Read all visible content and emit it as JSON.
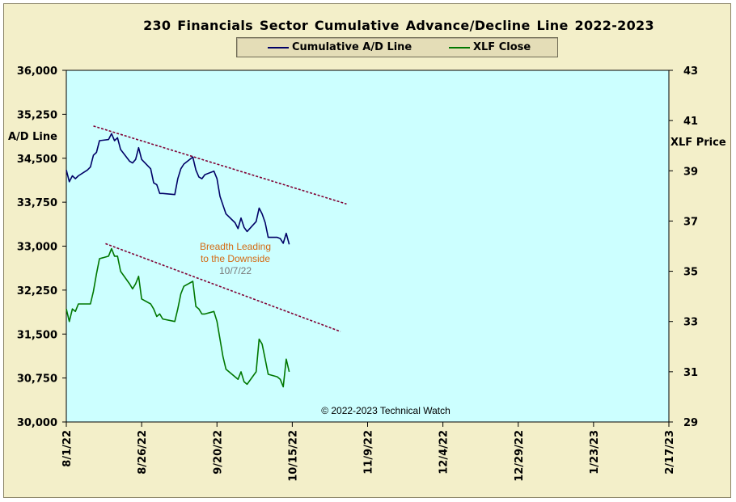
{
  "chart_data": {
    "type": "line",
    "title": "230 Financials  Sector Cumulative  Advance/Decline  Line  2022-2023",
    "legend": {
      "placement": "top-center",
      "entries": [
        "Cumulative A/D Line",
        "XLF Close"
      ]
    },
    "y_left": {
      "label": "A/D Line",
      "range": [
        30000,
        36000
      ],
      "ticks": [
        "36,000",
        "35,250",
        "34,500",
        "33,750",
        "33,000",
        "32,250",
        "31,500",
        "30,750",
        "30,000"
      ]
    },
    "y_right": {
      "label": "XLF Price",
      "range": [
        29,
        43
      ],
      "ticks": [
        "43",
        "41",
        "39",
        "37",
        "35",
        "33",
        "31",
        "29"
      ]
    },
    "x_axis": {
      "type": "date",
      "range": [
        "2022-08-01",
        "2023-02-17"
      ],
      "tick_dates": [
        "2022-08-01",
        "2022-08-26",
        "2022-09-20",
        "2022-10-15",
        "2022-11-09",
        "2022-12-04",
        "2022-12-29",
        "2023-01-23",
        "2023-02-17"
      ],
      "tick_labels": [
        "8/1/22",
        "8/26/22",
        "9/20/22",
        "10/15/22",
        "11/9/22",
        "12/4/22",
        "12/29/22",
        "1/23/23",
        "2/17/23"
      ]
    },
    "grid": false,
    "colors": {
      "plot_bg": "#ccffff",
      "frame_bg": "#f3efc9",
      "ad_line": "#000066",
      "xlf_line": "#007700",
      "trendline": "#800033",
      "annotation": "#d46a14",
      "annotation_date": "#777777"
    },
    "series": [
      {
        "name": "Cumulative A/D Line",
        "axis": "left",
        "color": "#000066",
        "points": [
          [
            "2022-08-01",
            34300
          ],
          [
            "2022-08-02",
            34100
          ],
          [
            "2022-08-03",
            34200
          ],
          [
            "2022-08-04",
            34150
          ],
          [
            "2022-08-05",
            34200
          ],
          [
            "2022-08-08",
            34300
          ],
          [
            "2022-08-09",
            34350
          ],
          [
            "2022-08-10",
            34550
          ],
          [
            "2022-08-11",
            34600
          ],
          [
            "2022-08-12",
            34800
          ],
          [
            "2022-08-15",
            34820
          ],
          [
            "2022-08-16",
            34920
          ],
          [
            "2022-08-17",
            34800
          ],
          [
            "2022-08-18",
            34850
          ],
          [
            "2022-08-19",
            34650
          ],
          [
            "2022-08-22",
            34450
          ],
          [
            "2022-08-23",
            34420
          ],
          [
            "2022-08-24",
            34480
          ],
          [
            "2022-08-25",
            34680
          ],
          [
            "2022-08-26",
            34480
          ],
          [
            "2022-08-29",
            34320
          ],
          [
            "2022-08-30",
            34080
          ],
          [
            "2022-08-31",
            34050
          ],
          [
            "2022-09-01",
            33900
          ],
          [
            "2022-09-02",
            33900
          ],
          [
            "2022-09-06",
            33880
          ],
          [
            "2022-09-07",
            34150
          ],
          [
            "2022-09-08",
            34320
          ],
          [
            "2022-09-09",
            34400
          ],
          [
            "2022-09-12",
            34520
          ],
          [
            "2022-09-13",
            34300
          ],
          [
            "2022-09-14",
            34180
          ],
          [
            "2022-09-15",
            34150
          ],
          [
            "2022-09-16",
            34220
          ],
          [
            "2022-09-19",
            34280
          ],
          [
            "2022-09-20",
            34150
          ],
          [
            "2022-09-21",
            33850
          ],
          [
            "2022-09-22",
            33700
          ],
          [
            "2022-09-23",
            33550
          ],
          [
            "2022-09-26",
            33400
          ],
          [
            "2022-09-27",
            33300
          ],
          [
            "2022-09-28",
            33480
          ],
          [
            "2022-09-29",
            33320
          ],
          [
            "2022-09-30",
            33250
          ],
          [
            "2022-10-03",
            33420
          ],
          [
            "2022-10-04",
            33650
          ],
          [
            "2022-10-05",
            33550
          ],
          [
            "2022-10-06",
            33400
          ],
          [
            "2022-10-07",
            33150
          ],
          [
            "2022-10-10",
            33150
          ],
          [
            "2022-10-11",
            33130
          ],
          [
            "2022-10-12",
            33050
          ],
          [
            "2022-10-13",
            33220
          ],
          [
            "2022-10-14",
            33030
          ]
        ]
      },
      {
        "name": "XLF Close",
        "axis": "right",
        "color": "#007700",
        "points": [
          [
            "2022-08-01",
            33.5
          ],
          [
            "2022-08-02",
            33.0
          ],
          [
            "2022-08-03",
            33.5
          ],
          [
            "2022-08-04",
            33.4
          ],
          [
            "2022-08-05",
            33.7
          ],
          [
            "2022-08-08",
            33.7
          ],
          [
            "2022-08-09",
            33.7
          ],
          [
            "2022-08-10",
            34.2
          ],
          [
            "2022-08-11",
            34.9
          ],
          [
            "2022-08-12",
            35.5
          ],
          [
            "2022-08-15",
            35.6
          ],
          [
            "2022-08-16",
            35.9
          ],
          [
            "2022-08-17",
            35.6
          ],
          [
            "2022-08-18",
            35.6
          ],
          [
            "2022-08-19",
            35.0
          ],
          [
            "2022-08-22",
            34.5
          ],
          [
            "2022-08-23",
            34.3
          ],
          [
            "2022-08-24",
            34.5
          ],
          [
            "2022-08-25",
            34.8
          ],
          [
            "2022-08-26",
            33.9
          ],
          [
            "2022-08-29",
            33.7
          ],
          [
            "2022-08-30",
            33.5
          ],
          [
            "2022-08-31",
            33.2
          ],
          [
            "2022-09-01",
            33.3
          ],
          [
            "2022-09-02",
            33.1
          ],
          [
            "2022-09-06",
            33.0
          ],
          [
            "2022-09-07",
            33.5
          ],
          [
            "2022-09-08",
            34.1
          ],
          [
            "2022-09-09",
            34.4
          ],
          [
            "2022-09-12",
            34.6
          ],
          [
            "2022-09-13",
            33.6
          ],
          [
            "2022-09-14",
            33.5
          ],
          [
            "2022-09-15",
            33.3
          ],
          [
            "2022-09-16",
            33.3
          ],
          [
            "2022-09-19",
            33.4
          ],
          [
            "2022-09-20",
            33.0
          ],
          [
            "2022-09-21",
            32.3
          ],
          [
            "2022-09-22",
            31.6
          ],
          [
            "2022-09-23",
            31.1
          ],
          [
            "2022-09-26",
            30.8
          ],
          [
            "2022-09-27",
            30.7
          ],
          [
            "2022-09-28",
            31.0
          ],
          [
            "2022-09-29",
            30.6
          ],
          [
            "2022-09-30",
            30.5
          ],
          [
            "2022-10-03",
            31.0
          ],
          [
            "2022-10-04",
            32.3
          ],
          [
            "2022-10-05",
            32.1
          ],
          [
            "2022-10-06",
            31.5
          ],
          [
            "2022-10-07",
            30.9
          ],
          [
            "2022-10-10",
            30.8
          ],
          [
            "2022-10-11",
            30.7
          ],
          [
            "2022-10-12",
            30.4
          ],
          [
            "2022-10-13",
            31.5
          ],
          [
            "2022-10-14",
            31.0
          ]
        ]
      }
    ],
    "trendlines": [
      {
        "axis": "left",
        "from": [
          "2022-08-10",
          35050
        ],
        "to": [
          "2022-11-02",
          33720
        ]
      },
      {
        "axis": "right",
        "from": [
          "2022-08-14",
          36.1
        ],
        "to": [
          "2022-10-31",
          32.6
        ]
      }
    ],
    "annotations": [
      {
        "text_lines": [
          "Breadth Leading",
          "to the Downside"
        ],
        "color": "#d46a14",
        "anchor": [
          "2022-10-04",
          33000
        ],
        "axis": "left"
      },
      {
        "text_lines": [
          "10/7/22"
        ],
        "color": "#777777",
        "anchor": [
          "2022-10-04",
          32600
        ],
        "axis": "left"
      }
    ],
    "copyright": "© 2022-2023  Technical Watch"
  }
}
